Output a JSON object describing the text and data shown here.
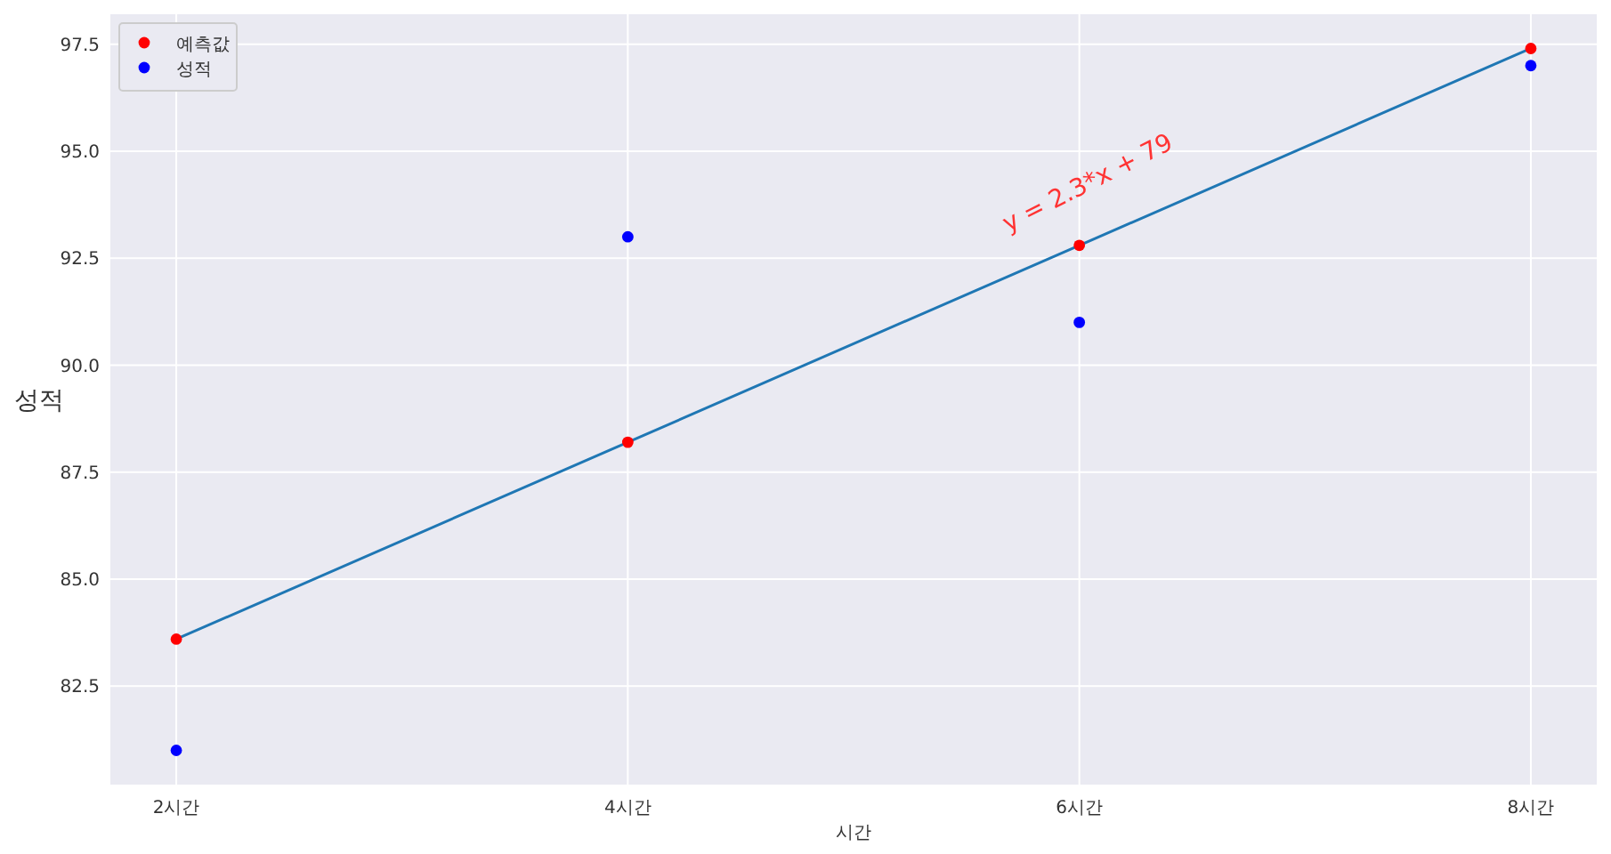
{
  "chart_data": {
    "type": "scatter",
    "xlabel": "시간",
    "ylabel": "성적",
    "categories": [
      "2시간",
      "4시간",
      "6시간",
      "8시간"
    ],
    "series": [
      {
        "type": "line",
        "marker": "none",
        "color": "#1f77b4",
        "values": [
          83.6,
          88.2,
          92.8,
          97.4
        ]
      },
      {
        "name": "예측값",
        "color": "#ff0000",
        "values": [
          83.6,
          88.2,
          92.8,
          97.4
        ]
      },
      {
        "name": "성적",
        "color": "#0000ff",
        "values": [
          81,
          93,
          91,
          97
        ]
      }
    ],
    "ylim": [
      80.2,
      98.2
    ],
    "yticks": [
      {
        "value": 82.5,
        "label": "82.5"
      },
      {
        "value": 85,
        "label": "85.0"
      },
      {
        "value": 87.5,
        "label": "87.5"
      },
      {
        "value": 90,
        "label": "90.0"
      },
      {
        "value": 92.5,
        "label": "92.5"
      },
      {
        "value": 95,
        "label": "95.0"
      },
      {
        "value": 97.5,
        "label": "97.5"
      }
    ],
    "annotations": [
      "y = 2.3*x + 79"
    ],
    "grid": true,
    "legend": "top left",
    "marker": "circle"
  }
}
